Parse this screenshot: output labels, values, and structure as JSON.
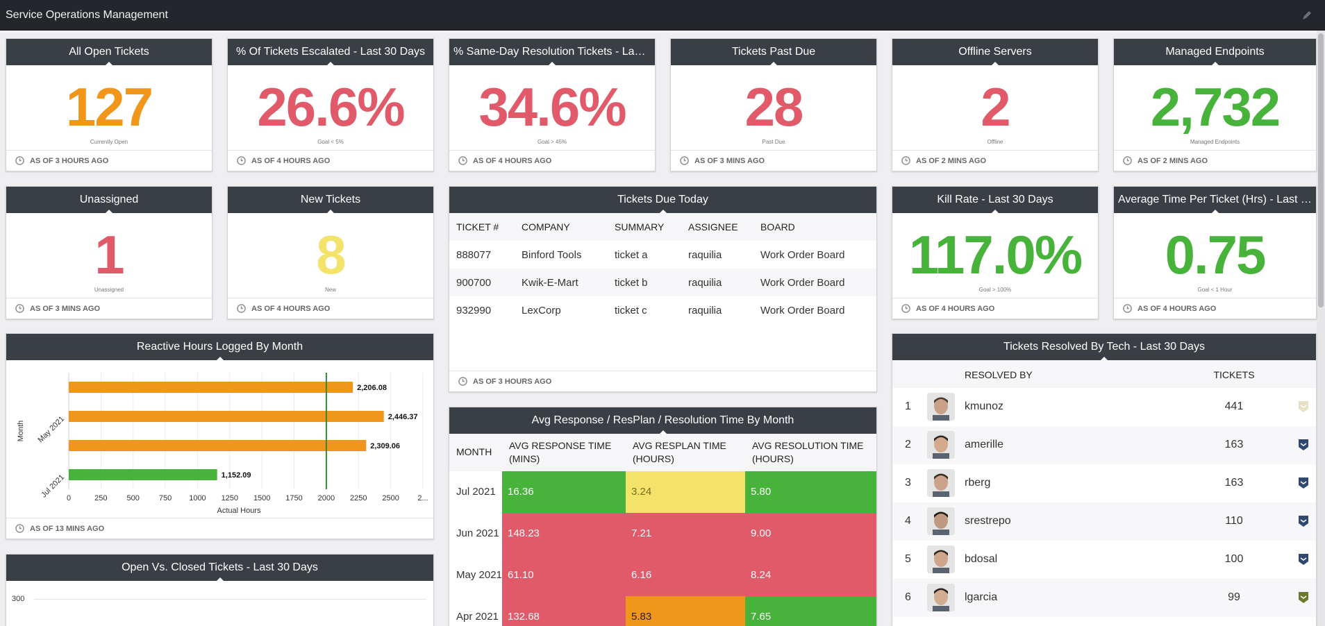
{
  "app": {
    "title": "Service Operations Management"
  },
  "kpis": [
    {
      "title": "All Open Tickets",
      "value": "127",
      "sub": "Currently Open",
      "asof": "AS OF 3 HOURS AGO",
      "color": "#f0961b"
    },
    {
      "title": "% Of Tickets Escalated - Last 30 Days",
      "value": "26.6%",
      "sub": "Goal < 5%",
      "asof": "AS OF 4 HOURS AGO",
      "color": "#e05a6a"
    },
    {
      "title": "% Same-Day Resolution Tickets - Last ...",
      "value": "34.6%",
      "sub": "Goal > 45%",
      "asof": "AS OF 4 HOURS AGO",
      "color": "#e05a6a"
    },
    {
      "title": "Tickets Past Due",
      "value": "28",
      "sub": "Past Due",
      "asof": "AS OF 3 MINS AGO",
      "color": "#e05a6a"
    },
    {
      "title": "Offline Servers",
      "value": "2",
      "sub": "Offline",
      "asof": "AS OF 2 MINS AGO",
      "color": "#e05a6a"
    },
    {
      "title": "Managed Endpoints",
      "value": "2,732",
      "sub": "Managed Endpoints",
      "asof": "AS OF 2 MINS AGO",
      "color": "#47b33b"
    },
    {
      "title": "Unassigned",
      "value": "1",
      "sub": "Unassigned",
      "asof": "AS OF 3 MINS AGO",
      "color": "#e05a6a"
    },
    {
      "title": "New Tickets",
      "value": "8",
      "sub": "New",
      "asof": "AS OF 4 HOURS AGO",
      "color": "#f3e36a"
    },
    {
      "title": "Kill Rate - Last 30 Days",
      "value": "117.0%",
      "sub": "Goal > 100%",
      "asof": "AS OF 4 HOURS AGO",
      "color": "#47b33b"
    },
    {
      "title": "Average Time Per Ticket (Hrs) - Last 3...",
      "value": "0.75",
      "sub": "Goal < 1 Hour",
      "asof": "AS OF 4 HOURS AGO",
      "color": "#47b33b"
    }
  ],
  "due_today": {
    "title": "Tickets Due Today",
    "columns": [
      "TICKET #",
      "COMPANY",
      "SUMMARY",
      "ASSIGNEE",
      "BOARD"
    ],
    "rows": [
      [
        "888077",
        "Binford Tools",
        "ticket a",
        "raquilia",
        "Work Order Board"
      ],
      [
        "900700",
        "Kwik-E-Mart",
        "ticket b",
        "raquilia",
        "Work Order Board"
      ],
      [
        "932990",
        "LexCorp",
        "ticket c",
        "raquilia",
        "Work Order Board"
      ]
    ],
    "asof": "AS OF 3 HOURS AGO"
  },
  "reactive": {
    "title": "Reactive Hours Logged By Month",
    "asof": "AS OF 13 MINS AGO"
  },
  "chart_data": {
    "type": "bar",
    "orientation": "horizontal",
    "title": "Reactive Hours Logged By Month",
    "xlabel": "Actual Hours",
    "ylabel": "Month",
    "categories": [
      "",
      "May 2021",
      "",
      "Jul 2021"
    ],
    "values": [
      2206.08,
      2446.37,
      2309.06,
      1152.09
    ],
    "value_labels": [
      "2,206.08",
      "2,446.37",
      "2,309.06",
      "1,152.09"
    ],
    "colors": [
      "#f0961b",
      "#f0961b",
      "#f0961b",
      "#47b33b"
    ],
    "xlim": [
      0,
      2750
    ],
    "ticks": [
      "0",
      "250",
      "500",
      "750",
      "1000",
      "1250",
      "1500",
      "1750",
      "2000",
      "2250",
      "2500",
      "2..."
    ],
    "target_line": 2000
  },
  "response": {
    "title": "Avg Response / ResPlan / Resolution Time By Month",
    "columns": [
      "MONTH",
      "AVG RESPONSE TIME (MINS)",
      "AVG RESPLAN TIME (HOURS)",
      "AVG RESOLUTION TIME (HOURS)"
    ],
    "rows": [
      {
        "month": "Jul 2021",
        "cells": [
          {
            "v": "16.36",
            "c": "#47b33b",
            "t": "#ffffff"
          },
          {
            "v": "3.24",
            "c": "#f3e36a",
            "t": "#7a6a1a"
          },
          {
            "v": "5.80",
            "c": "#47b33b",
            "t": "#ffffff"
          }
        ]
      },
      {
        "month": "Jun 2021",
        "cells": [
          {
            "v": "148.23",
            "c": "#e05a6a",
            "t": "#ffffff"
          },
          {
            "v": "7.21",
            "c": "#e05a6a",
            "t": "#ffffff"
          },
          {
            "v": "9.00",
            "c": "#e05a6a",
            "t": "#ffffff"
          }
        ]
      },
      {
        "month": "May 2021",
        "cells": [
          {
            "v": "61.10",
            "c": "#e05a6a",
            "t": "#ffffff"
          },
          {
            "v": "6.16",
            "c": "#e05a6a",
            "t": "#ffffff"
          },
          {
            "v": "8.24",
            "c": "#e05a6a",
            "t": "#ffffff"
          }
        ]
      },
      {
        "month": "Apr 2021",
        "cells": [
          {
            "v": "132.68",
            "c": "#e05a6a",
            "t": "#ffffff"
          },
          {
            "v": "5.83",
            "c": "#f0961b",
            "t": "#222222"
          },
          {
            "v": "7.65",
            "c": "#47b33b",
            "t": "#ffffff"
          }
        ]
      }
    ]
  },
  "open_closed": {
    "title": "Open Vs. Closed Tickets - Last 30 Days",
    "y_tick": "300"
  },
  "resolved": {
    "title": "Tickets Resolved By Tech - Last 30 Days",
    "col_name": "RESOLVED BY",
    "col_count": "TICKETS",
    "rows": [
      {
        "rank": "1",
        "name": "kmunoz",
        "count": "441"
      },
      {
        "rank": "2",
        "name": "amerille",
        "count": "163"
      },
      {
        "rank": "3",
        "name": "rberg",
        "count": "163"
      },
      {
        "rank": "4",
        "name": "srestrepo",
        "count": "110"
      },
      {
        "rank": "5",
        "name": "bdosal",
        "count": "100"
      },
      {
        "rank": "6",
        "name": "lgarcia",
        "count": "99"
      }
    ]
  }
}
